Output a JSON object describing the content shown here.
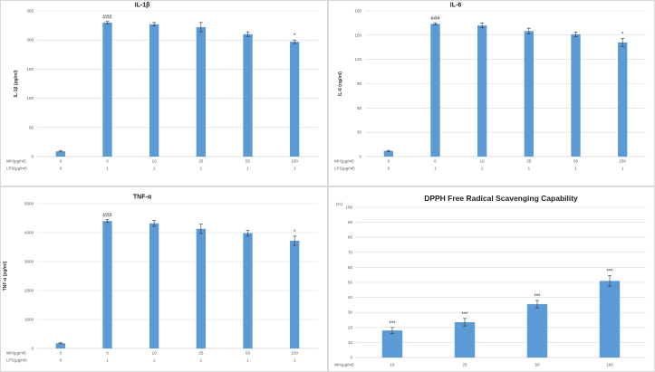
{
  "colors": {
    "bar": "#5b9bd5",
    "error_bar": "#333333",
    "grid": "#d9d9d9",
    "axis": "#bfbfbf"
  },
  "chart_data": [
    {
      "type": "bar",
      "title": "IL-1β",
      "ylabel": "IL-1β (pg/ml)",
      "ylim": [
        0,
        250
      ],
      "yticks": [
        0,
        50,
        100,
        150,
        200,
        250
      ],
      "grid": true,
      "row_labels": [
        "WH(μg/ml)",
        "LPS(μg/ml)"
      ],
      "categories": [
        [
          "0",
          "0"
        ],
        [
          "0",
          "1"
        ],
        [
          "10",
          "1"
        ],
        [
          "25",
          "1"
        ],
        [
          "50",
          "1"
        ],
        [
          "100",
          "1"
        ]
      ],
      "values": [
        9,
        230,
        227,
        222,
        210,
        197
      ],
      "errors": [
        1,
        2,
        3,
        8,
        4,
        3
      ],
      "annotations": [
        "",
        "###",
        "",
        "",
        "",
        "*"
      ]
    },
    {
      "type": "bar",
      "title": "IL-6",
      "ylabel": "IL-6 (ng/ml)",
      "ylim": [
        0,
        180
      ],
      "yticks": [
        0,
        30,
        60,
        90,
        120,
        150,
        180
      ],
      "grid": true,
      "row_labels": [
        "WH(μg/ml)",
        "LPS(μg/ml)"
      ],
      "categories": [
        [
          "0",
          "0"
        ],
        [
          "0",
          "1"
        ],
        [
          "10",
          "1"
        ],
        [
          "25",
          "1"
        ],
        [
          "50",
          "1"
        ],
        [
          "100",
          "1"
        ]
      ],
      "values": [
        7,
        164,
        162,
        155,
        151,
        141
      ],
      "errors": [
        0.7,
        1.3,
        3,
        3.6,
        3,
        5
      ],
      "annotations": [
        "",
        "###",
        "",
        "",
        "",
        "*"
      ]
    },
    {
      "type": "bar",
      "title": "TNF-α",
      "ylabel": "TNF-α (pg/ml)",
      "ylim": [
        0,
        5000
      ],
      "yticks": [
        0,
        1000,
        2000,
        3000,
        4000,
        5000
      ],
      "grid": true,
      "row_labels": [
        "WH(μg/ml)",
        "LPS(μg/ml)"
      ],
      "categories": [
        [
          "0",
          "0"
        ],
        [
          "0",
          "1"
        ],
        [
          "10",
          "1"
        ],
        [
          "25",
          "1"
        ],
        [
          "50",
          "1"
        ],
        [
          "100",
          "1"
        ]
      ],
      "values": [
        180,
        4400,
        4320,
        4130,
        3980,
        3720
      ],
      "errors": [
        20,
        50,
        100,
        160,
        100,
        160
      ],
      "annotations": [
        "",
        "###",
        "",
        "",
        "",
        "*"
      ]
    },
    {
      "type": "bar",
      "title": "DPPH Free Radical Scavenging Capability",
      "ylabel": "(%)",
      "ylim": [
        0,
        100
      ],
      "yticks": [
        0,
        10,
        20,
        30,
        40,
        50,
        60,
        70,
        80,
        90,
        100
      ],
      "grid": true,
      "row_labels": [
        "WH(μg/ml)"
      ],
      "categories": [
        [
          "10"
        ],
        [
          "25"
        ],
        [
          "50"
        ],
        [
          "100"
        ]
      ],
      "values": [
        18,
        23.5,
        35.5,
        51
      ],
      "errors": [
        2,
        2.5,
        2.5,
        3.5
      ],
      "annotations": [
        "***",
        "***",
        "***",
        "***"
      ]
    }
  ]
}
